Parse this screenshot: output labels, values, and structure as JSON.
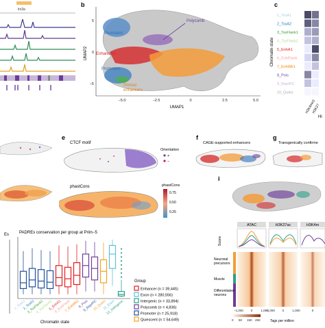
{
  "panels": {
    "b": {
      "letter": "b",
      "xlabel": "UMAP1",
      "ylabel": "UMAP2",
      "xticks": [
        "−5.0",
        "−2.5",
        "0",
        "2.5",
        "5.0"
      ],
      "yticks": [
        "5",
        "0",
        "−5"
      ],
      "labels": {
        "promoters_top": "Promoters",
        "polycomb": "Polycomb",
        "enhancers": "Enhancers",
        "promoters_bottom": "Promoters",
        "primed": "Primed\nenhancers"
      }
    },
    "c": {
      "letter": "c",
      "axis_label": "Chromatin state",
      "states": [
        {
          "label": "1_TssA1",
          "color": "#a6cee3"
        },
        {
          "label": "2_TssA2",
          "color": "#1f78b4"
        },
        {
          "label": "3_TssFlank1",
          "color": "#33a02c"
        },
        {
          "label": "4_TssFlank2",
          "color": "#b2df8a"
        },
        {
          "label": "5_EnhA1",
          "color": "#e31a1c"
        },
        {
          "label": "6_EnhFlank",
          "color": "#fb9a99"
        },
        {
          "label": "7_EnhWk1",
          "color": "#ff7f00"
        },
        {
          "label": "8_Pois",
          "color": "#6a3d9a"
        },
        {
          "label": "9_ReprPC",
          "color": "#cab2d6"
        },
        {
          "label": "10_Quies",
          "color": "#aaaaaa"
        }
      ],
      "bottom_labels": [
        "H3K4me3",
        "H3K27"
      ],
      "cut_label": "Hi"
    },
    "a": {
      "gene_label": "lrx3a"
    },
    "e": {
      "letter": "e",
      "ctcf_title": "CTCF motif",
      "orientation_title": "Orientation",
      "orientation_items": [
        "+",
        "−"
      ],
      "phastcons_title": "phastCons",
      "colorbar_title": "phastCons",
      "colorbar_ticks": [
        "0.75",
        "0.50",
        "0.25"
      ]
    },
    "f": {
      "letter": "f",
      "title": "CAGE-supported enhancers"
    },
    "g": {
      "letter": "g",
      "title": "Transgenically confirme"
    },
    "h": {
      "title": "PADREs conservation per group at Prim−5",
      "xlabel": "Chromatin state",
      "cut_ylabel": "Es",
      "xticks": [
        "1_TssA1",
        "2_TssA2",
        "3_TssFlank1",
        "4_TssFlank2",
        "5_EnhA1",
        "6_EnhFlank",
        "7_EnhWk1",
        "8_Pois",
        "9_ReprPC",
        "10_Quies",
        "11_Exon",
        "12_Intergenic"
      ],
      "legend_title": "Group",
      "legend": [
        {
          "label": "Enhancer (n = 39,445)",
          "color": "#e31a1c"
        },
        {
          "label": "Exon (n = 280,556)",
          "color": "#5bc0de"
        },
        {
          "label": "Intergenic (n = 33,894)",
          "color": "#2ca089"
        },
        {
          "label": "Polycomb (n = 4,836)",
          "color": "#6a3d9a"
        },
        {
          "label": "Promoter (n = 25,918)",
          "color": "#1f4e9a"
        },
        {
          "label": "Quiescent (n = 54,649)",
          "color": "#f4a020"
        }
      ]
    },
    "i": {
      "letter": "i",
      "tracks": [
        "ATAC",
        "H3K27ac",
        "H3K4m"
      ],
      "score_label": "Score",
      "groups": [
        "Neuronal\nprecursors",
        "Muscle",
        "Differentiated\nneurons"
      ],
      "xticks": [
        "−1,000",
        "0",
        "1,000"
      ],
      "colorbar_ticks": [
        "0",
        "50",
        "150",
        "250"
      ],
      "colorbar_label": "Tags per million"
    }
  },
  "colors": {
    "enhancer": "#e31a1c",
    "promoter": "#2f6fb5",
    "polycomb": "#6a3d9a",
    "primed": "#f39c3a",
    "grey": "#9a9a9a"
  }
}
